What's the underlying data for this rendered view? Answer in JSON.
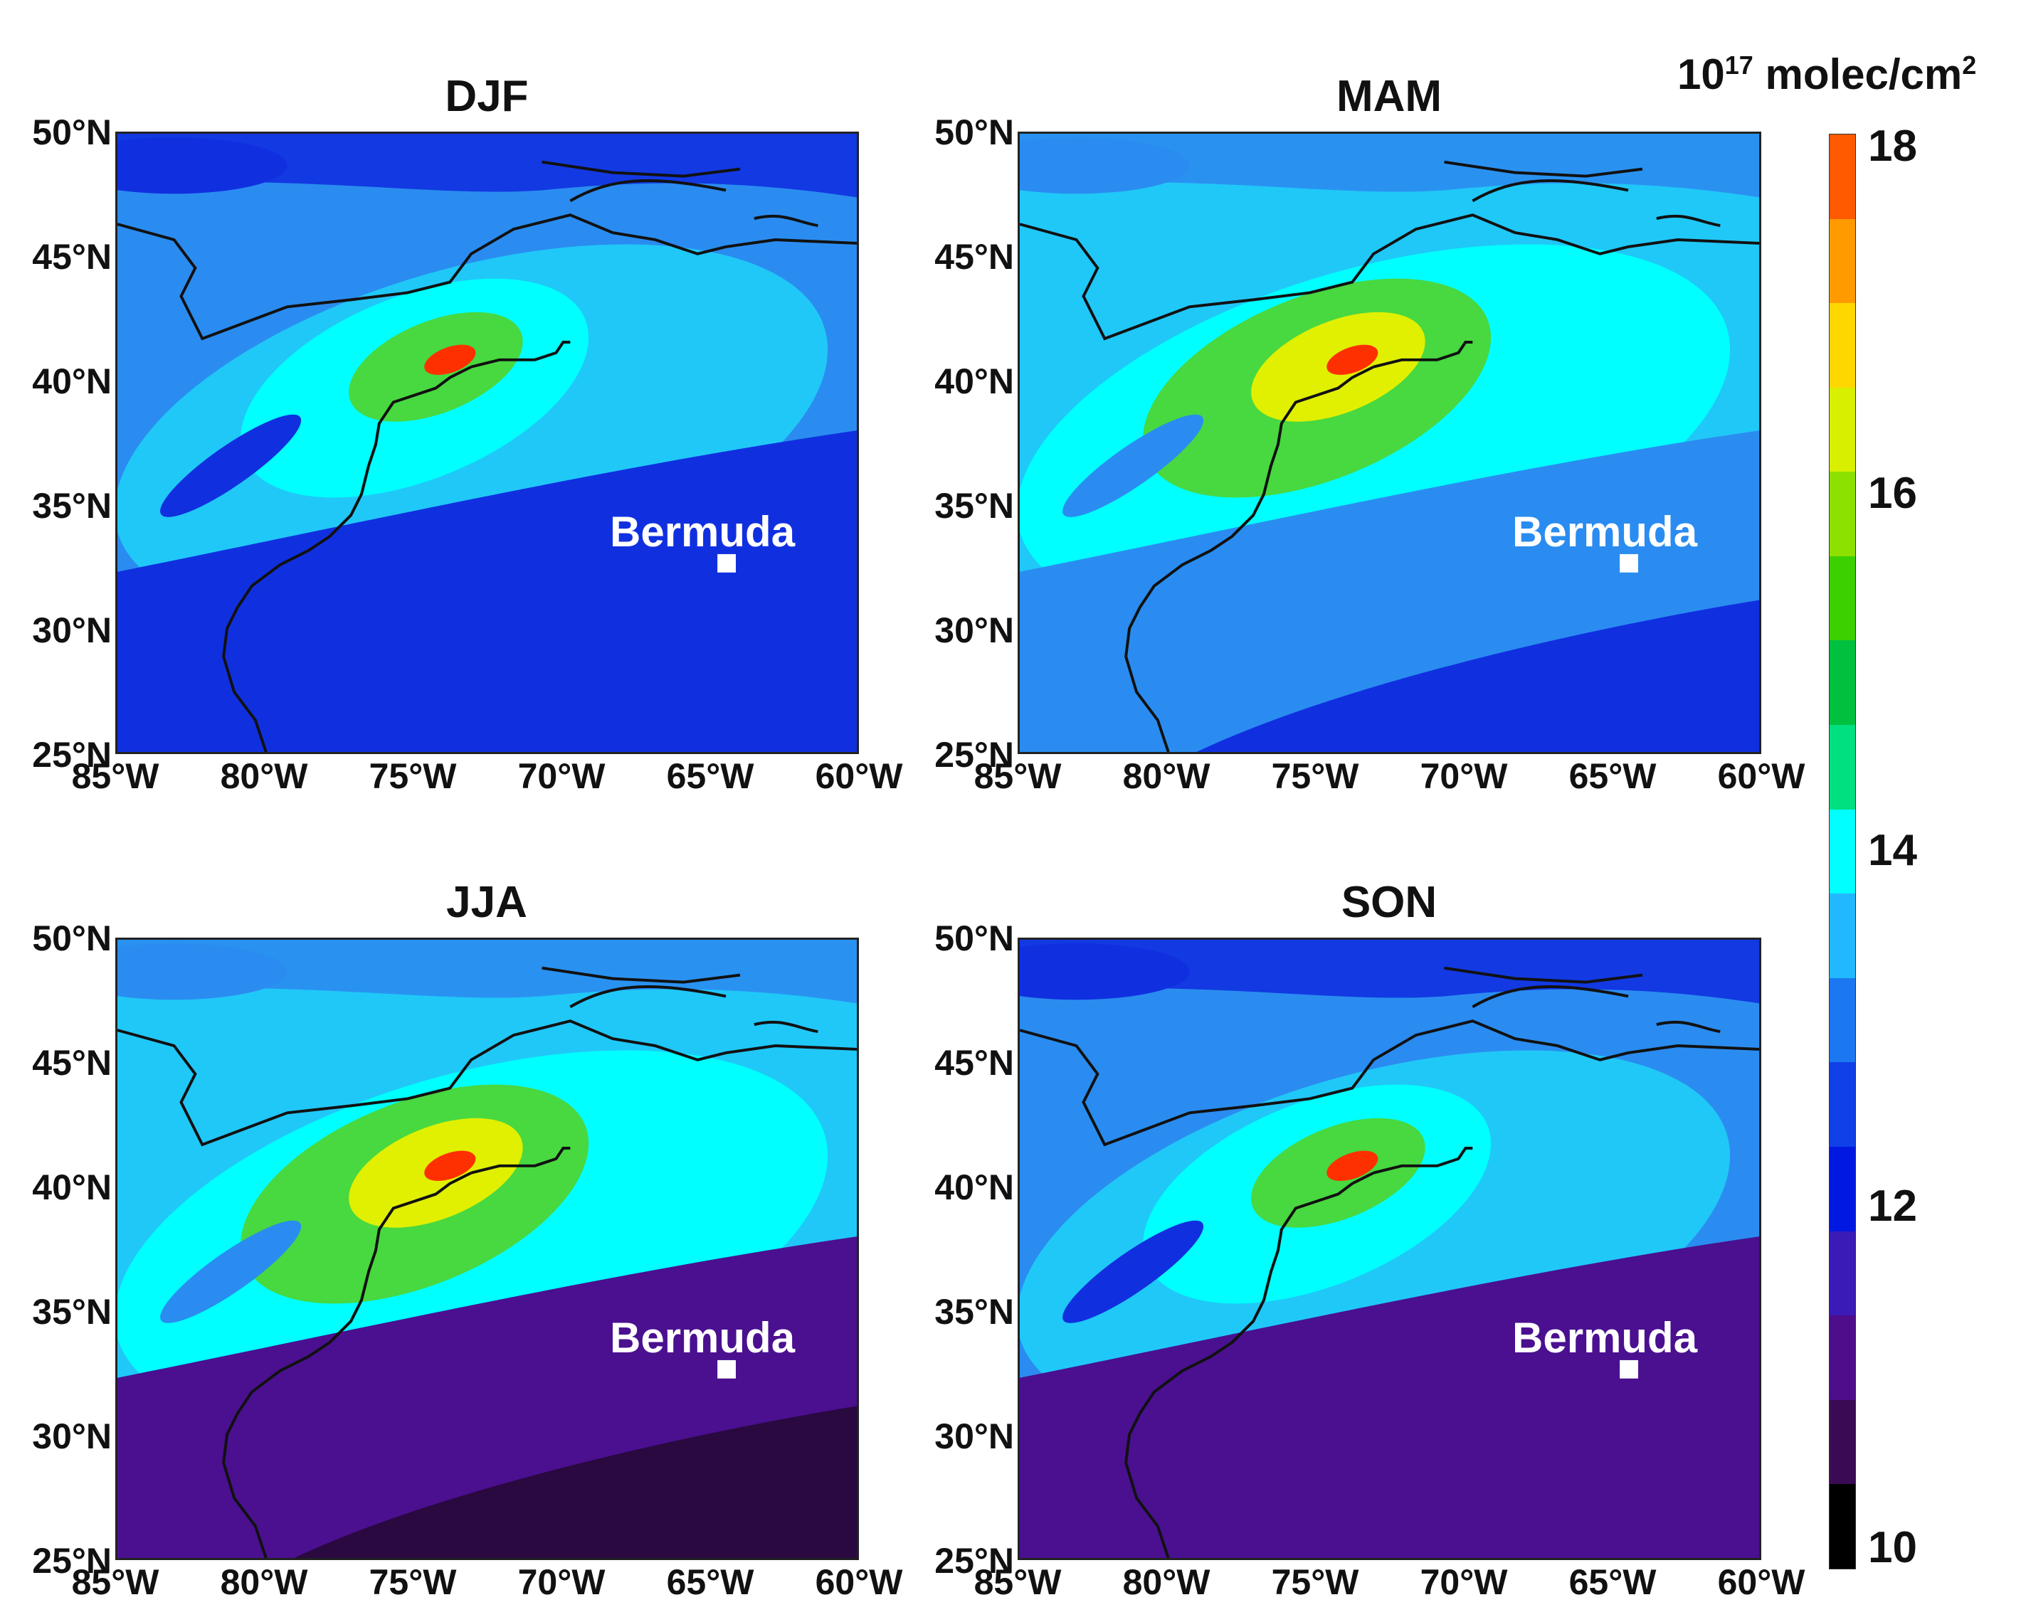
{
  "panels": [
    {
      "title": "DJF",
      "marker_label": "Bermuda"
    },
    {
      "title": "MAM",
      "marker_label": "Bermuda"
    },
    {
      "title": "JJA",
      "marker_label": "Bermuda"
    },
    {
      "title": "SON",
      "marker_label": "Bermuda"
    }
  ],
  "lat_ticks": [
    "50°N",
    "45°N",
    "40°N",
    "35°N",
    "30°N",
    "25°N"
  ],
  "lon_ticks": [
    "85°W",
    "80°W",
    "75°W",
    "70°W",
    "65°W",
    "60°W"
  ],
  "colorbar": {
    "unit_base": "10",
    "unit_exp": "17",
    "unit_rest": " molec/cm",
    "unit_sq": "2",
    "tick_labels": [
      "18",
      "16",
      "14",
      "12",
      "10"
    ],
    "colors_top_to_bottom": [
      "#ff5a00",
      "#ff9a00",
      "#ffd700",
      "#d8f000",
      "#8ee000",
      "#3cd000",
      "#00c040",
      "#00e080",
      "#00ffff",
      "#22b8ff",
      "#1b78f0",
      "#1040e8",
      "#0018e0",
      "#3a1bb8",
      "#4e0d8a",
      "#3a0a55",
      "#000000"
    ]
  },
  "palette": {
    "deep": "#1030e0",
    "mid": "#2a8cf0",
    "light": "#20c8f8",
    "cyan": "#00ffff",
    "green": "#48d840",
    "yellow": "#e0f000",
    "red": "#ff3000",
    "purple": "#4a1090",
    "darkpurple": "#2a0840"
  }
}
